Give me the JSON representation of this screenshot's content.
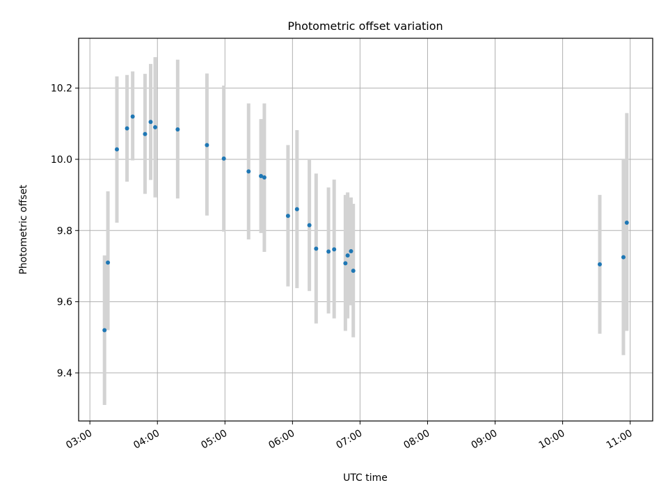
{
  "chart_data": {
    "type": "scatter",
    "title": "Photometric offset variation",
    "xlabel": "UTC time",
    "ylabel": "Photometric offset",
    "xlim": [
      "02:50",
      "11:20"
    ],
    "ylim": [
      9.265,
      10.34
    ],
    "x_ticks": [
      "03:00",
      "04:00",
      "05:00",
      "06:00",
      "07:00",
      "08:00",
      "09:00",
      "10:00",
      "11:00"
    ],
    "y_ticks": [
      9.4,
      9.6,
      9.8,
      10.0,
      10.2
    ],
    "y_tick_labels": [
      "9.4",
      "9.6",
      "9.8",
      "10.0",
      "10.2"
    ],
    "grid": true,
    "marker_color": "#1f77b4",
    "errorbar_color": "#d3d3d3",
    "points": [
      {
        "time": "03:13",
        "y": 9.52,
        "ylow": 9.31,
        "yhigh": 9.73
      },
      {
        "time": "03:16",
        "y": 9.71,
        "ylow": 9.52,
        "yhigh": 9.91
      },
      {
        "time": "03:24",
        "y": 10.028,
        "ylow": 9.822,
        "yhigh": 10.233
      },
      {
        "time": "03:33",
        "y": 10.087,
        "ylow": 9.937,
        "yhigh": 10.237
      },
      {
        "time": "03:38",
        "y": 10.12,
        "ylow": 9.997,
        "yhigh": 10.247
      },
      {
        "time": "03:49",
        "y": 10.071,
        "ylow": 9.903,
        "yhigh": 10.24
      },
      {
        "time": "03:54",
        "y": 10.105,
        "ylow": 9.942,
        "yhigh": 10.268
      },
      {
        "time": "03:58",
        "y": 10.09,
        "ylow": 9.893,
        "yhigh": 10.287
      },
      {
        "time": "04:18",
        "y": 10.084,
        "ylow": 9.89,
        "yhigh": 10.28
      },
      {
        "time": "04:44",
        "y": 10.04,
        "ylow": 9.842,
        "yhigh": 10.241
      },
      {
        "time": "04:59",
        "y": 10.002,
        "ylow": 9.797,
        "yhigh": 10.207
      },
      {
        "time": "05:21",
        "y": 9.966,
        "ylow": 9.775,
        "yhigh": 10.157
      },
      {
        "time": "05:32",
        "y": 9.953,
        "ylow": 9.793,
        "yhigh": 10.113
      },
      {
        "time": "05:35",
        "y": 9.949,
        "ylow": 9.74,
        "yhigh": 10.157
      },
      {
        "time": "05:56",
        "y": 9.841,
        "ylow": 9.643,
        "yhigh": 10.04
      },
      {
        "time": "06:04",
        "y": 9.86,
        "ylow": 9.638,
        "yhigh": 10.082
      },
      {
        "time": "06:15",
        "y": 9.815,
        "ylow": 9.63,
        "yhigh": 10.0
      },
      {
        "time": "06:21",
        "y": 9.749,
        "ylow": 9.539,
        "yhigh": 9.96
      },
      {
        "time": "06:32",
        "y": 9.741,
        "ylow": 9.567,
        "yhigh": 9.921
      },
      {
        "time": "06:37",
        "y": 9.747,
        "ylow": 9.553,
        "yhigh": 9.943
      },
      {
        "time": "06:47",
        "y": 9.708,
        "ylow": 9.518,
        "yhigh": 9.9
      },
      {
        "time": "06:49",
        "y": 9.73,
        "ylow": 9.553,
        "yhigh": 9.907
      },
      {
        "time": "06:52",
        "y": 9.742,
        "ylow": 9.59,
        "yhigh": 9.893
      },
      {
        "time": "06:54",
        "y": 9.687,
        "ylow": 9.5,
        "yhigh": 9.875
      },
      {
        "time": "10:33",
        "y": 9.705,
        "ylow": 9.51,
        "yhigh": 9.9
      },
      {
        "time": "10:54",
        "y": 9.725,
        "ylow": 9.45,
        "yhigh": 10.0
      },
      {
        "time": "10:57",
        "y": 9.822,
        "ylow": 9.518,
        "yhigh": 10.13
      }
    ]
  }
}
